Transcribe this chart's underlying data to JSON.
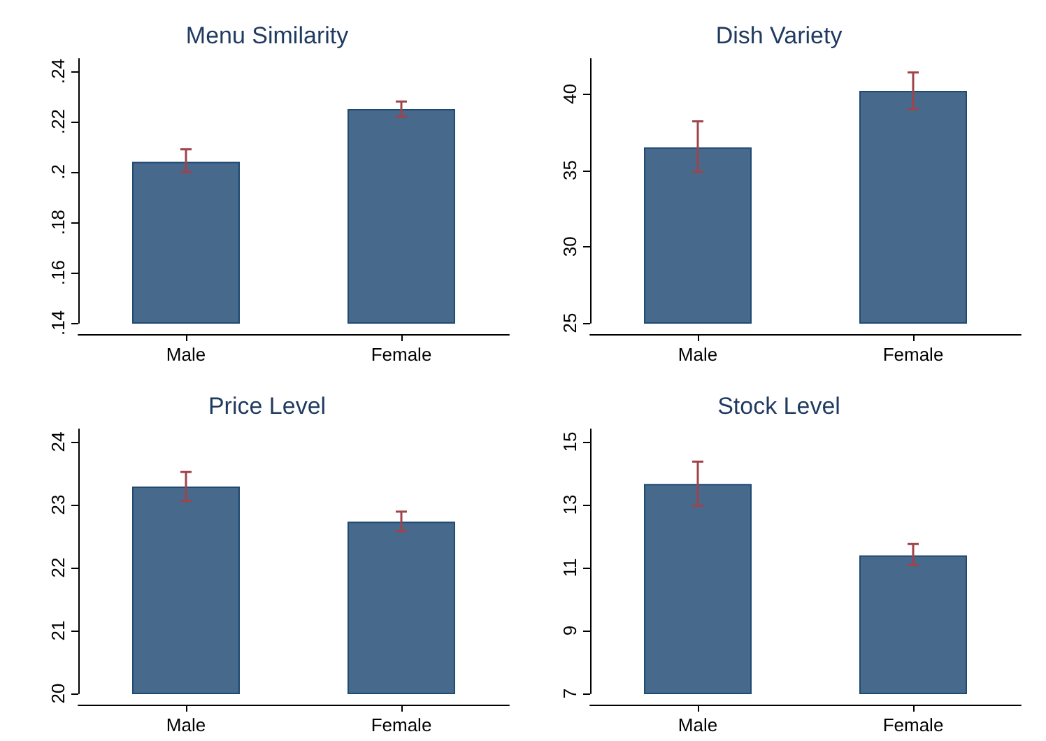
{
  "chart_data": [
    {
      "type": "bar",
      "title": "Menu Similarity",
      "categories": [
        "Male",
        "Female"
      ],
      "values": [
        0.204,
        0.225
      ],
      "errors": [
        [
          0.2,
          0.209
        ],
        [
          0.222,
          0.228
        ]
      ],
      "color": "#46698c",
      "ylim": [
        0.14,
        0.245
      ],
      "yticks": [
        {
          "value": 0.14,
          "label": ".14"
        },
        {
          "value": 0.16,
          "label": ".16"
        },
        {
          "value": 0.18,
          "label": ".18"
        },
        {
          "value": 0.2,
          "label": ".2"
        },
        {
          "value": 0.22,
          "label": ".22"
        },
        {
          "value": 0.24,
          "label": ".24"
        }
      ],
      "grid": false
    },
    {
      "type": "bar",
      "title": "Dish Variety",
      "categories": [
        "Male",
        "Female"
      ],
      "values": [
        36.5,
        40.2
      ],
      "errors": [
        [
          34.9,
          38.2
        ],
        [
          39,
          41.4
        ]
      ],
      "color": "#46698c",
      "ylim": [
        25,
        42.3
      ],
      "yticks": [
        25,
        30,
        35,
        40
      ],
      "grid": false
    },
    {
      "type": "bar",
      "title": "Price Level",
      "categories": [
        "Male",
        "Female"
      ],
      "values": [
        23.29,
        22.73
      ],
      "errors": [
        [
          23.06,
          23.52
        ],
        [
          22.58,
          22.89
        ]
      ],
      "color": "#46698c",
      "ylim": [
        20,
        24.2
      ],
      "yticks": [
        20,
        21,
        22,
        23,
        24
      ],
      "grid": false
    },
    {
      "type": "bar",
      "title": "Stock Level",
      "categories": [
        "Male",
        "Female"
      ],
      "values": [
        13.66,
        11.39
      ],
      "errors": [
        [
          12.97,
          14.37
        ],
        [
          11.08,
          11.75
        ]
      ],
      "color": "#46698c",
      "ylim": [
        7,
        15.4
      ],
      "yticks": [
        7,
        9,
        11,
        13,
        15
      ],
      "grid": false
    }
  ]
}
